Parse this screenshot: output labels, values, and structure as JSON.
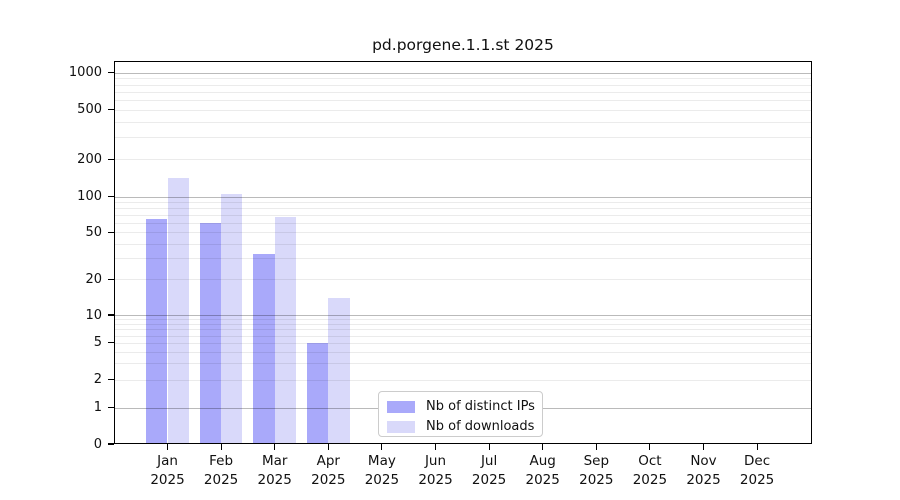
{
  "chart_data": {
    "type": "bar",
    "title": "pd.porgene.1.1.st 2025",
    "categories": [
      "Jan",
      "Feb",
      "Mar",
      "Apr",
      "May",
      "Jun",
      "Jul",
      "Aug",
      "Sep",
      "Oct",
      "Nov",
      "Dec"
    ],
    "x_year_label": "2025",
    "series": [
      {
        "name": "Nb of distinct IPs",
        "color": "#a9a9fa",
        "values": [
          64,
          60,
          33,
          5,
          0,
          0,
          0,
          0,
          0,
          0,
          0,
          0
        ]
      },
      {
        "name": "Nb of downloads",
        "color": "#d9d9fa",
        "values": [
          140,
          105,
          67,
          14,
          0,
          0,
          0,
          0,
          0,
          0,
          0,
          0
        ]
      }
    ],
    "y_ticks": [
      0,
      1,
      2,
      5,
      10,
      20,
      50,
      100,
      200,
      500,
      1000
    ],
    "y_scale": "log (symlog with 0 at baseline)",
    "ylim": [
      0,
      1000
    ],
    "grid": true,
    "legend_position": "lower center-left inside plot"
  }
}
